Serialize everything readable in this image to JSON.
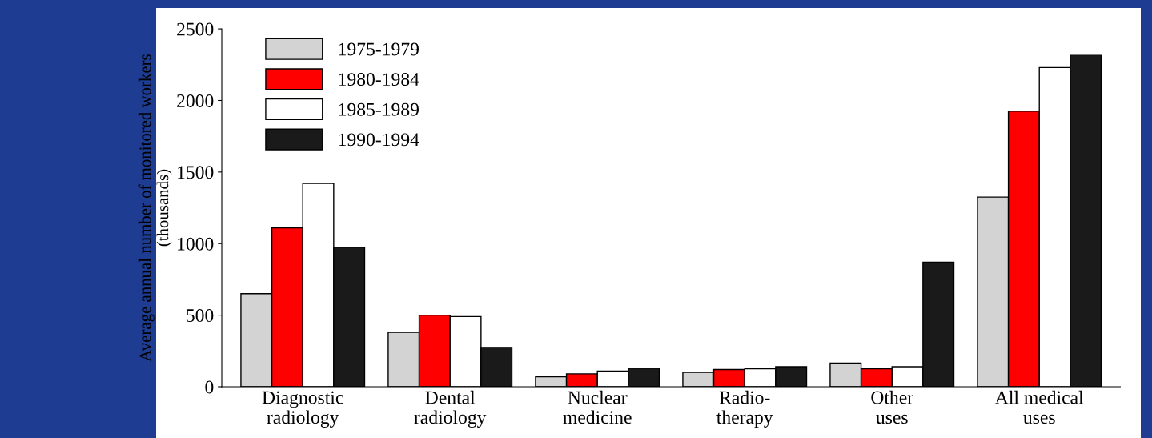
{
  "chart_data": {
    "type": "bar",
    "ylabel": "Average annual number of monitored workers\n(thousands)",
    "categories": [
      "Diagnostic\nradiology",
      "Dental\nradiology",
      "Nuclear\nmedicine",
      "Radio-\ntherapy",
      "Other\nuses",
      "All medical\nuses"
    ],
    "series": [
      {
        "name": "1975-1979",
        "color": "#d3d3d3",
        "values": [
          650,
          380,
          70,
          100,
          165,
          1325
        ]
      },
      {
        "name": "1980-1984",
        "color": "#ff0000",
        "values": [
          1110,
          500,
          90,
          120,
          125,
          1925
        ]
      },
      {
        "name": "1985-1989",
        "color": "#ffffff",
        "values": [
          1420,
          490,
          110,
          125,
          140,
          2230
        ]
      },
      {
        "name": "1990-1994",
        "color": "#1a1a1a",
        "values": [
          975,
          275,
          130,
          140,
          870,
          2315
        ]
      }
    ],
    "ylim": [
      0,
      2500
    ],
    "yticks": [
      0,
      500,
      1000,
      1500,
      2000,
      2500
    ],
    "grid": false,
    "legend": "top left"
  }
}
